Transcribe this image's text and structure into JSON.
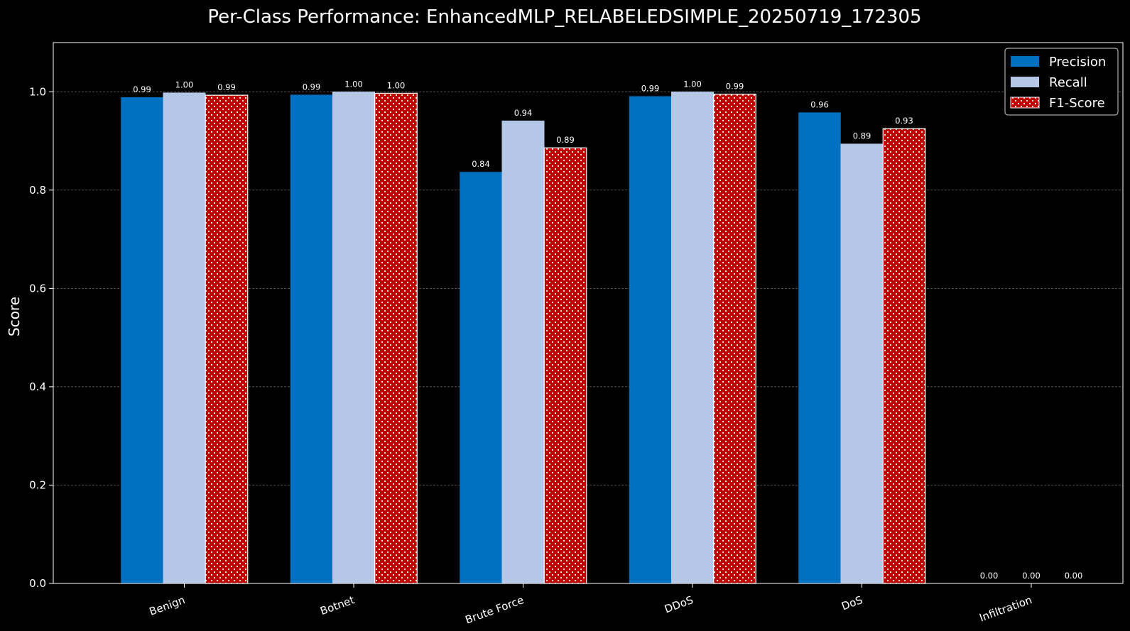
{
  "chart_data": {
    "type": "bar",
    "title": "Per-Class Performance: EnhancedMLP_RELABELEDSIMPLE_20250719_172305",
    "xlabel": "",
    "ylabel": "Score",
    "ylim": [
      0,
      1.1
    ],
    "yticks": [
      "0.0",
      "0.2",
      "0.4",
      "0.6",
      "0.8",
      "1.0"
    ],
    "grid": true,
    "legend_position": "top-right",
    "categories": [
      "Benign",
      "Botnet",
      "Brute Force",
      "DDoS",
      "DoS",
      "Infiltration"
    ],
    "series": [
      {
        "name": "Precision",
        "color": "#0070c0",
        "pattern": "solid",
        "values": [
          0.989,
          0.994,
          0.837,
          0.991,
          0.958,
          0.0
        ],
        "labels": [
          "0.99",
          "0.99",
          "0.84",
          "0.99",
          "0.96",
          "0.00"
        ]
      },
      {
        "name": "Recall",
        "color": "#b4c7e7",
        "pattern": "solid",
        "values": [
          0.998,
          1.0,
          0.941,
          1.0,
          0.894,
          0.0
        ],
        "labels": [
          "1.00",
          "1.00",
          "0.94",
          "1.00",
          "0.89",
          "0.00"
        ]
      },
      {
        "name": "F1-Score",
        "color": "#c00000",
        "pattern": "dots",
        "values": [
          0.993,
          0.997,
          0.886,
          0.995,
          0.925,
          0.0
        ],
        "labels": [
          "0.99",
          "1.00",
          "0.89",
          "0.99",
          "0.93",
          "0.00"
        ]
      }
    ]
  }
}
